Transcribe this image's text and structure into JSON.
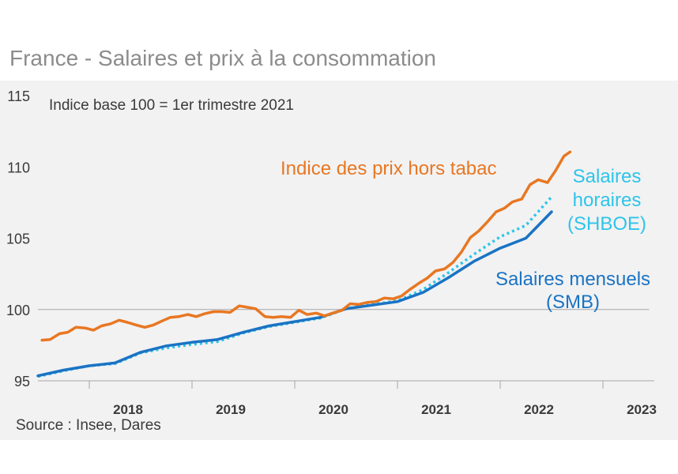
{
  "title": "France - Salaires et prix à la consommation",
  "source": "Source : Insee, Dares",
  "chart_data": {
    "type": "line",
    "subtitle": "Indice base 100 = 1er trimestre 2021",
    "ylim": [
      95,
      115
    ],
    "yticks": [
      95,
      100,
      105,
      110,
      115
    ],
    "xlim": [
      2017.5,
      2023.5
    ],
    "xtick_labels": [
      "2018",
      "2019",
      "2020",
      "2021",
      "2022",
      "2023"
    ],
    "reference_line": 100,
    "series": [
      {
        "name": "Indice des prix hors tabac",
        "label_lines": [
          "Indice des prix hors tabac"
        ],
        "color": "#e87722",
        "style": "solid",
        "points": [
          [
            2017.54,
            97.85
          ],
          [
            2017.62,
            97.9
          ],
          [
            2017.71,
            98.3
          ],
          [
            2017.79,
            98.4
          ],
          [
            2017.87,
            98.75
          ],
          [
            2017.96,
            98.7
          ],
          [
            2018.04,
            98.55
          ],
          [
            2018.12,
            98.85
          ],
          [
            2018.21,
            99.0
          ],
          [
            2018.29,
            99.25
          ],
          [
            2018.37,
            99.1
          ],
          [
            2018.46,
            98.9
          ],
          [
            2018.54,
            98.75
          ],
          [
            2018.62,
            98.9
          ],
          [
            2018.71,
            99.2
          ],
          [
            2018.79,
            99.45
          ],
          [
            2018.87,
            99.5
          ],
          [
            2018.96,
            99.65
          ],
          [
            2019.04,
            99.5
          ],
          [
            2019.12,
            99.7
          ],
          [
            2019.21,
            99.85
          ],
          [
            2019.29,
            99.85
          ],
          [
            2019.37,
            99.8
          ],
          [
            2019.46,
            100.25
          ],
          [
            2019.54,
            100.15
          ],
          [
            2019.62,
            100.05
          ],
          [
            2019.71,
            99.5
          ],
          [
            2019.79,
            99.45
          ],
          [
            2019.87,
            99.5
          ],
          [
            2019.96,
            99.45
          ],
          [
            2020.04,
            99.95
          ],
          [
            2020.12,
            99.65
          ],
          [
            2020.21,
            99.75
          ],
          [
            2020.29,
            99.55
          ],
          [
            2020.37,
            99.75
          ],
          [
            2020.46,
            99.95
          ],
          [
            2020.54,
            100.4
          ],
          [
            2020.62,
            100.35
          ],
          [
            2020.71,
            100.5
          ],
          [
            2020.79,
            100.55
          ],
          [
            2020.87,
            100.8
          ],
          [
            2020.96,
            100.75
          ],
          [
            2021.04,
            100.95
          ],
          [
            2021.12,
            101.4
          ],
          [
            2021.21,
            101.85
          ],
          [
            2021.29,
            102.2
          ],
          [
            2021.37,
            102.7
          ],
          [
            2021.46,
            102.85
          ],
          [
            2021.54,
            103.3
          ],
          [
            2021.62,
            104.0
          ],
          [
            2021.71,
            105.05
          ],
          [
            2021.79,
            105.5
          ],
          [
            2021.87,
            106.1
          ],
          [
            2021.96,
            106.85
          ],
          [
            2022.04,
            107.1
          ],
          [
            2022.12,
            107.55
          ],
          [
            2022.21,
            107.75
          ],
          [
            2022.29,
            108.75
          ],
          [
            2022.37,
            109.1
          ],
          [
            2022.46,
            108.9
          ],
          [
            2022.54,
            109.75
          ],
          [
            2022.62,
            110.75
          ],
          [
            2022.68,
            111.05
          ]
        ]
      },
      {
        "name": "Salaires horaires (SHBOE)",
        "label_lines": [
          "Salaires",
          "horaires",
          "(SHBOE)"
        ],
        "color": "#2ec4ea",
        "style": "dotted",
        "points": [
          [
            2017.5,
            95.3
          ],
          [
            2017.75,
            95.7
          ],
          [
            2018.0,
            96.05
          ],
          [
            2018.25,
            96.2
          ],
          [
            2018.5,
            96.95
          ],
          [
            2018.75,
            97.3
          ],
          [
            2019.0,
            97.55
          ],
          [
            2019.25,
            97.75
          ],
          [
            2019.5,
            98.35
          ],
          [
            2019.75,
            98.8
          ],
          [
            2020.0,
            99.1
          ],
          [
            2020.25,
            99.4
          ],
          [
            2020.5,
            100.05
          ],
          [
            2020.75,
            100.35
          ],
          [
            2021.0,
            100.6
          ],
          [
            2021.25,
            101.4
          ],
          [
            2021.5,
            102.6
          ],
          [
            2021.75,
            103.9
          ],
          [
            2022.0,
            105.1
          ],
          [
            2022.25,
            105.9
          ],
          [
            2022.5,
            107.9
          ]
        ]
      },
      {
        "name": "Salaires mensuels (SMB)",
        "label_lines": [
          "Salaires mensuels",
          "(SMB)"
        ],
        "color": "#1a73c4",
        "style": "solid",
        "points": [
          [
            2017.5,
            95.35
          ],
          [
            2017.75,
            95.75
          ],
          [
            2018.0,
            96.05
          ],
          [
            2018.25,
            96.25
          ],
          [
            2018.5,
            97.0
          ],
          [
            2018.75,
            97.45
          ],
          [
            2019.0,
            97.7
          ],
          [
            2019.25,
            97.9
          ],
          [
            2019.5,
            98.4
          ],
          [
            2019.75,
            98.85
          ],
          [
            2020.0,
            99.15
          ],
          [
            2020.25,
            99.45
          ],
          [
            2020.5,
            100.05
          ],
          [
            2020.75,
            100.3
          ],
          [
            2021.0,
            100.55
          ],
          [
            2021.25,
            101.2
          ],
          [
            2021.5,
            102.25
          ],
          [
            2021.75,
            103.4
          ],
          [
            2022.0,
            104.3
          ],
          [
            2022.25,
            105.0
          ],
          [
            2022.5,
            106.85
          ]
        ]
      }
    ]
  }
}
